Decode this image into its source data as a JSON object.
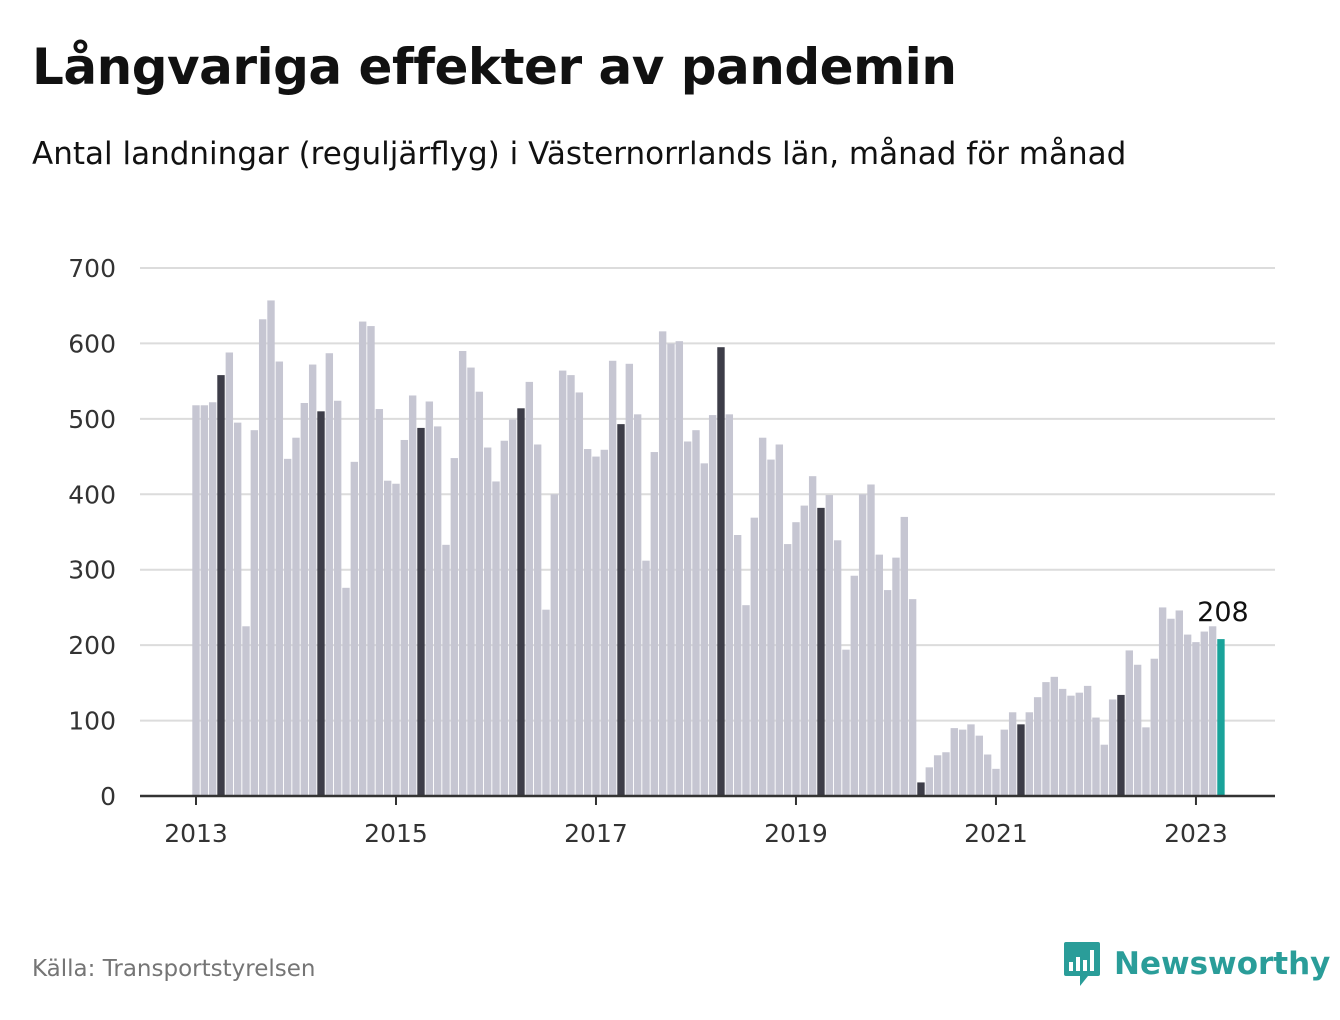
{
  "title": "Långvariga effekter av pandemin",
  "subtitle": "Antal landningar (reguljärflyg) i Västernorrlands län, månad för månad",
  "source": "Källa: Transportstyrelsen",
  "brand": {
    "name": "Newsworthy",
    "icon": "newsworthy-logo-icon",
    "color": "#2a9d99"
  },
  "chart_data": {
    "type": "bar",
    "ylim": [
      0,
      700
    ],
    "yticks": [
      0,
      100,
      200,
      300,
      400,
      500,
      600,
      700
    ],
    "xticks": [
      "2013",
      "2015",
      "2017",
      "2019",
      "2021",
      "2023"
    ],
    "grid": true,
    "start_month": "2013-01",
    "highlight_month": "04",
    "colors": {
      "default": "#c6c6d2",
      "highlight_month": "#3d3d48",
      "latest": "#1aa39a"
    },
    "latest_label": "208",
    "values": [
      518,
      518,
      522,
      558,
      588,
      495,
      225,
      485,
      632,
      657,
      576,
      447,
      475,
      521,
      572,
      510,
      587,
      524,
      276,
      443,
      629,
      623,
      513,
      418,
      414,
      472,
      531,
      488,
      523,
      490,
      333,
      448,
      590,
      568,
      536,
      462,
      417,
      471,
      499,
      514,
      549,
      466,
      247,
      400,
      564,
      558,
      535,
      460,
      450,
      459,
      577,
      493,
      573,
      506,
      312,
      456,
      616,
      600,
      603,
      470,
      485,
      441,
      505,
      595,
      506,
      346,
      253,
      369,
      475,
      446,
      466,
      334,
      363,
      385,
      424,
      382,
      399,
      339,
      194,
      292,
      400,
      413,
      320,
      273,
      316,
      370,
      261,
      18,
      38,
      54,
      58,
      90,
      88,
      95,
      80,
      55,
      36,
      88,
      111,
      95,
      111,
      131,
      151,
      158,
      142,
      133,
      137,
      146,
      104,
      68,
      128,
      134,
      193,
      174,
      91,
      182,
      250,
      235,
      246,
      214,
      204,
      218,
      225,
      208
    ]
  }
}
